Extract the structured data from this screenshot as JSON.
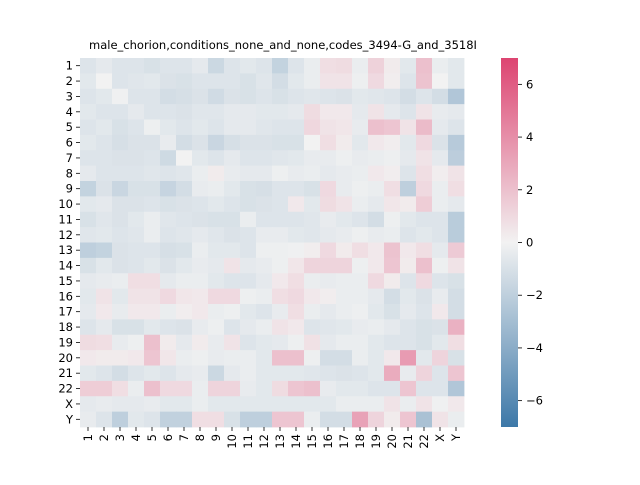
{
  "chart_data": {
    "type": "heatmap",
    "title": "male_chorion,conditions_none_and_none,codes_3494-G_and_3518I",
    "xlabel": "",
    "ylabel": "",
    "row_labels": [
      "1",
      "2",
      "3",
      "4",
      "5",
      "6",
      "7",
      "8",
      "9",
      "10",
      "11",
      "12",
      "13",
      "14",
      "15",
      "16",
      "17",
      "18",
      "19",
      "20",
      "21",
      "22",
      "X",
      "Y"
    ],
    "col_labels": [
      "1",
      "2",
      "3",
      "4",
      "5",
      "6",
      "7",
      "8",
      "9",
      "10",
      "11",
      "12",
      "13",
      "14",
      "15",
      "16",
      "17",
      "18",
      "19",
      "20",
      "21",
      "22",
      "X",
      "Y"
    ],
    "value_range": [
      -7,
      7
    ],
    "colorbar_ticks": [
      -6,
      -4,
      -2,
      0,
      2,
      4,
      6
    ],
    "colormap": {
      "low": "#3d78a8",
      "mid": "#f2f2f2",
      "high": "#dd4471"
    },
    "values": [
      [
        -0.8,
        -0.5,
        -0.8,
        -0.8,
        -1.0,
        -0.8,
        -0.8,
        -0.5,
        -1.5,
        -0.8,
        -0.6,
        -0.8,
        -1.8,
        -0.8,
        -0.3,
        0.8,
        0.9,
        -0.3,
        1.3,
        0.3,
        -0.6,
        2.0,
        -0.3,
        -0.6
      ],
      [
        -0.6,
        0.0,
        -0.8,
        -0.7,
        -0.6,
        -0.9,
        -1.0,
        -0.8,
        -0.8,
        -0.8,
        -1.0,
        -0.7,
        -1.2,
        -0.6,
        -0.3,
        0.6,
        0.6,
        -0.2,
        1.0,
        0.2,
        -0.8,
        1.9,
        0.0,
        -0.6
      ],
      [
        -0.8,
        -0.6,
        -0.1,
        -0.8,
        -0.8,
        -1.2,
        -1.1,
        -0.9,
        -1.3,
        -0.9,
        -1.0,
        -0.8,
        -1.0,
        -0.8,
        -0.7,
        -0.8,
        -0.9,
        -0.6,
        -0.7,
        -0.8,
        -1.2,
        -0.8,
        -1.2,
        -2.5
      ],
      [
        -0.6,
        -0.8,
        -0.8,
        -0.5,
        -0.8,
        -0.8,
        -0.9,
        -0.7,
        -0.7,
        -0.5,
        -0.5,
        -0.6,
        -0.6,
        -0.5,
        0.9,
        0.4,
        0.4,
        -0.5,
        0.6,
        -0.5,
        -0.8,
        0.6,
        -0.4,
        -0.5
      ],
      [
        -0.8,
        -0.6,
        -1.0,
        -0.8,
        -0.2,
        -0.6,
        -0.8,
        -0.6,
        -0.8,
        -0.5,
        -0.5,
        -0.7,
        -0.8,
        -0.8,
        1.1,
        0.6,
        0.5,
        -0.4,
        2.0,
        1.8,
        0.6,
        2.2,
        -0.5,
        -0.8
      ],
      [
        -0.6,
        -0.8,
        -1.1,
        -0.9,
        -0.9,
        -0.4,
        -1.2,
        -0.9,
        -1.6,
        -1.1,
        -0.9,
        -0.9,
        -1.0,
        -1.0,
        0.0,
        0.8,
        0.3,
        -0.6,
        0.4,
        0.2,
        -0.6,
        1.0,
        -0.9,
        -2.3
      ],
      [
        -0.8,
        -0.8,
        -0.9,
        -0.9,
        -0.8,
        -1.4,
        0.0,
        -0.6,
        -0.8,
        -0.5,
        -0.8,
        -0.8,
        -0.7,
        -0.6,
        -0.4,
        -0.4,
        -0.2,
        -0.4,
        -0.3,
        -0.2,
        -0.5,
        0.6,
        -0.5,
        -2.1
      ],
      [
        -0.5,
        -0.8,
        -0.8,
        -0.8,
        -0.7,
        -0.8,
        -0.7,
        -0.3,
        0.3,
        -0.4,
        -0.5,
        -0.5,
        -0.2,
        -0.4,
        -0.3,
        -0.5,
        -0.4,
        -0.3,
        0.4,
        0.2,
        -0.8,
        0.8,
        0.2,
        0.6
      ],
      [
        -1.8,
        -0.9,
        -1.6,
        -1.0,
        -1.0,
        -1.7,
        -1.2,
        -0.4,
        -0.3,
        -0.6,
        -1.0,
        -1.1,
        -0.8,
        -0.8,
        -1.0,
        1.0,
        -0.4,
        -0.2,
        -0.3,
        0.8,
        -2.0,
        1.0,
        -0.3,
        0.8
      ],
      [
        -0.6,
        -0.5,
        -0.9,
        -0.9,
        -0.8,
        -1.0,
        -0.9,
        -0.8,
        -0.6,
        -0.8,
        -1.0,
        -0.9,
        -0.8,
        0.4,
        -0.6,
        0.9,
        0.6,
        -0.3,
        -0.5,
        0.5,
        0.3,
        1.5,
        -0.3,
        -0.5
      ],
      [
        -1.0,
        -0.7,
        -0.9,
        -0.6,
        -0.3,
        -0.7,
        -0.8,
        -0.9,
        -1.0,
        -1.0,
        -0.3,
        -0.8,
        -0.8,
        -0.8,
        -0.7,
        -0.4,
        -0.6,
        -0.8,
        -1.2,
        -0.2,
        -0.6,
        -0.8,
        -0.8,
        -2.2
      ],
      [
        -0.7,
        -0.6,
        -0.8,
        -0.7,
        -0.3,
        -0.8,
        -0.7,
        -0.5,
        -0.7,
        -0.9,
        -0.8,
        -0.4,
        -0.4,
        -0.6,
        -0.7,
        -0.5,
        -0.4,
        -0.2,
        -0.4,
        -0.3,
        -0.8,
        -0.6,
        -0.8,
        -2.2
      ],
      [
        -2.0,
        -1.8,
        -0.9,
        -0.8,
        -0.8,
        -1.1,
        -1.0,
        -0.3,
        -0.6,
        -0.6,
        -0.8,
        -0.2,
        -0.2,
        -0.1,
        0.2,
        1.0,
        0.3,
        0.8,
        0.4,
        1.9,
        0.4,
        0.8,
        -0.5,
        1.6
      ],
      [
        -1.0,
        -0.6,
        -0.9,
        -0.8,
        -0.6,
        -0.9,
        -0.6,
        -0.4,
        -0.5,
        0.6,
        -0.5,
        -0.4,
        -0.2,
        0.5,
        1.2,
        1.2,
        1.2,
        -0.2,
        0.4,
        1.8,
        0.3,
        2.0,
        -0.2,
        0.6
      ],
      [
        -0.5,
        -0.4,
        -0.3,
        0.8,
        0.8,
        -0.5,
        -0.3,
        -0.3,
        -0.6,
        -0.8,
        -0.8,
        -0.5,
        0.4,
        0.8,
        -0.3,
        -0.4,
        -0.3,
        -0.3,
        1.0,
        0.3,
        -0.8,
        1.0,
        -0.8,
        -1.0
      ],
      [
        -0.6,
        0.6,
        -0.6,
        0.6,
        0.6,
        1.0,
        0.5,
        0.4,
        1.0,
        1.0,
        -0.2,
        -0.3,
        0.8,
        1.0,
        0.4,
        0.2,
        -0.3,
        -0.3,
        -0.5,
        -1.2,
        -0.6,
        -0.9,
        -0.4,
        -1.2
      ],
      [
        -0.5,
        0.4,
        -0.4,
        0.4,
        0.4,
        -0.3,
        0.2,
        0.4,
        -0.3,
        -0.2,
        -0.6,
        -0.8,
        -0.4,
        0.8,
        -0.3,
        -0.5,
        -0.3,
        -0.2,
        -0.6,
        -1.0,
        -0.5,
        -0.8,
        0.4,
        -1.2
      ],
      [
        -0.8,
        -0.5,
        -1.0,
        -1.0,
        -0.6,
        -0.8,
        -0.9,
        -0.4,
        -0.2,
        -0.8,
        -0.5,
        -0.3,
        0.6,
        0.4,
        -0.8,
        -0.7,
        -0.6,
        -0.4,
        -0.3,
        -0.5,
        -0.8,
        -1.0,
        -0.9,
        2.6
      ],
      [
        0.9,
        0.8,
        -0.4,
        -0.2,
        2.0,
        0.3,
        -0.5,
        0.3,
        -0.4,
        0.6,
        -0.8,
        -0.6,
        -0.5,
        -0.2,
        0.7,
        -0.5,
        -0.3,
        -0.3,
        -0.6,
        -0.8,
        -0.8,
        -1.0,
        -0.6,
        0.8
      ],
      [
        0.4,
        0.3,
        0.3,
        0.4,
        1.8,
        0.5,
        -0.3,
        -0.2,
        -0.4,
        -0.3,
        -0.3,
        -0.6,
        2.0,
        2.0,
        -0.2,
        -1.2,
        -1.2,
        -0.3,
        -0.6,
        0.4,
        3.5,
        -0.6,
        1.2,
        -1.0
      ],
      [
        -0.6,
        -0.8,
        -1.2,
        -0.8,
        -0.6,
        -0.8,
        -0.5,
        -0.4,
        -1.5,
        -0.5,
        -0.3,
        -0.6,
        -0.6,
        -0.6,
        -0.7,
        -0.8,
        -0.9,
        -0.8,
        -0.6,
        2.8,
        -0.4,
        1.2,
        -0.8,
        1.8
      ],
      [
        1.5,
        1.5,
        0.8,
        -0.3,
        2.0,
        1.0,
        1.0,
        -0.3,
        1.2,
        1.2,
        -0.4,
        -0.6,
        0.9,
        1.8,
        2.0,
        -0.4,
        -0.6,
        -0.6,
        -0.8,
        -0.8,
        1.8,
        -0.8,
        -0.8,
        -2.5
      ],
      [
        -0.5,
        -0.4,
        -0.5,
        -0.5,
        -0.4,
        -0.6,
        -0.6,
        -0.3,
        -0.6,
        -0.6,
        -0.6,
        -0.6,
        -0.6,
        -0.6,
        -0.6,
        -0.6,
        -0.3,
        -0.3,
        -0.3,
        0.6,
        -0.3,
        0.6,
        -0.1,
        0.4
      ],
      [
        -0.4,
        -0.8,
        -2.0,
        -0.6,
        -0.8,
        -1.9,
        -1.9,
        0.8,
        0.8,
        -1.0,
        -2.0,
        -2.0,
        1.8,
        1.8,
        -0.3,
        -1.2,
        -1.2,
        3.2,
        1.2,
        0.3,
        1.8,
        -2.8,
        0.6,
        -0.3
      ]
    ]
  }
}
